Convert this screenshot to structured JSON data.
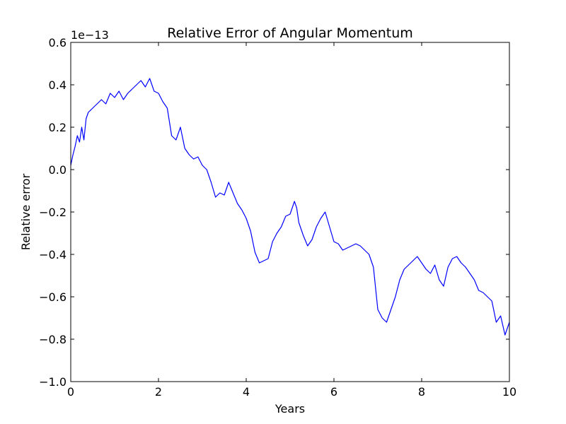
{
  "chart_data": {
    "type": "line",
    "title": "Relative Error of Angular Momentum",
    "xlabel": "Years",
    "ylabel": "Relative error",
    "y_offset_text": "1e−13",
    "xlim": [
      0,
      10
    ],
    "ylim": [
      -1.0,
      0.6
    ],
    "xticks": [
      0,
      2,
      4,
      6,
      8,
      10
    ],
    "xtick_labels": [
      "0",
      "2",
      "4",
      "6",
      "8",
      "10"
    ],
    "yticks": [
      -1.0,
      -0.8,
      -0.6,
      -0.4,
      -0.2,
      0.0,
      0.2,
      0.4,
      0.6
    ],
    "ytick_labels": [
      "−1.0",
      "−0.8",
      "−0.6",
      "−0.4",
      "−0.2",
      "0.0",
      "0.2",
      "0.4",
      "0.6"
    ],
    "grid": false,
    "series": [
      {
        "color": "#0000ff",
        "x": [
          0.0,
          0.05,
          0.1,
          0.15,
          0.2,
          0.25,
          0.3,
          0.35,
          0.4,
          0.5,
          0.6,
          0.7,
          0.8,
          0.9,
          1.0,
          1.1,
          1.2,
          1.3,
          1.4,
          1.5,
          1.6,
          1.7,
          1.8,
          1.9,
          2.0,
          2.1,
          2.2,
          2.3,
          2.4,
          2.5,
          2.6,
          2.7,
          2.8,
          2.9,
          3.0,
          3.1,
          3.2,
          3.3,
          3.4,
          3.5,
          3.6,
          3.7,
          3.8,
          3.9,
          4.0,
          4.1,
          4.2,
          4.3,
          4.4,
          4.5,
          4.6,
          4.7,
          4.8,
          4.9,
          5.0,
          5.1,
          5.15,
          5.2,
          5.3,
          5.4,
          5.5,
          5.6,
          5.7,
          5.8,
          5.9,
          6.0,
          6.1,
          6.2,
          6.3,
          6.4,
          6.5,
          6.6,
          6.7,
          6.8,
          6.9,
          7.0,
          7.1,
          7.2,
          7.3,
          7.4,
          7.5,
          7.6,
          7.7,
          7.8,
          7.9,
          8.0,
          8.1,
          8.2,
          8.3,
          8.4,
          8.5,
          8.6,
          8.7,
          8.8,
          8.9,
          9.0,
          9.1,
          9.2,
          9.3,
          9.4,
          9.5,
          9.6,
          9.7,
          9.8,
          9.9,
          10.0
        ],
        "y": [
          0.02,
          0.07,
          0.11,
          0.16,
          0.13,
          0.2,
          0.14,
          0.24,
          0.27,
          0.29,
          0.31,
          0.33,
          0.31,
          0.36,
          0.34,
          0.37,
          0.33,
          0.36,
          0.38,
          0.4,
          0.42,
          0.39,
          0.43,
          0.37,
          0.36,
          0.32,
          0.29,
          0.16,
          0.14,
          0.2,
          0.1,
          0.07,
          0.05,
          0.06,
          0.02,
          0.0,
          -0.06,
          -0.13,
          -0.11,
          -0.12,
          -0.06,
          -0.11,
          -0.16,
          -0.19,
          -0.23,
          -0.29,
          -0.39,
          -0.44,
          -0.43,
          -0.42,
          -0.34,
          -0.3,
          -0.27,
          -0.22,
          -0.21,
          -0.15,
          -0.18,
          -0.25,
          -0.31,
          -0.36,
          -0.33,
          -0.27,
          -0.23,
          -0.2,
          -0.27,
          -0.34,
          -0.35,
          -0.38,
          -0.37,
          -0.36,
          -0.35,
          -0.36,
          -0.38,
          -0.4,
          -0.46,
          -0.66,
          -0.7,
          -0.72,
          -0.66,
          -0.6,
          -0.52,
          -0.47,
          -0.45,
          -0.43,
          -0.41,
          -0.44,
          -0.47,
          -0.49,
          -0.45,
          -0.52,
          -0.55,
          -0.46,
          -0.42,
          -0.41,
          -0.44,
          -0.46,
          -0.49,
          -0.52,
          -0.57,
          -0.58,
          -0.6,
          -0.62,
          -0.72,
          -0.69,
          -0.78,
          -0.72
        ]
      }
    ]
  }
}
